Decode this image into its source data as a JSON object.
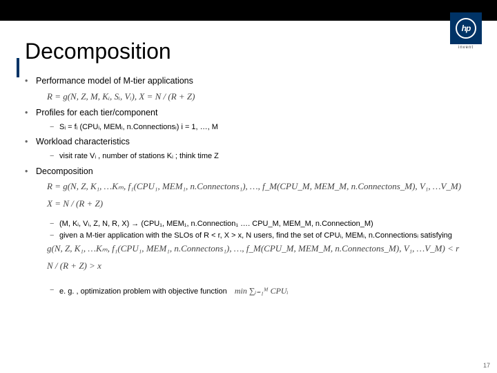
{
  "logo": {
    "text": "hp",
    "tagline": "invent"
  },
  "title": "Decomposition",
  "bullets": {
    "b1": {
      "text": "Performance model of M-tier applications",
      "formula": "R = g(N, Z, M, Kᵢ, Sᵢ, Vᵢ), X = N / (R + Z)"
    },
    "b2": {
      "text": "Profiles for each tier/component",
      "sub": "Sᵢ = fᵢ (CPUᵢ, MEMᵢ, n.Connectionsᵢ)  i = 1, …, M"
    },
    "b3": {
      "text": "Workload characteristics",
      "sub": "visit rate Vᵢ , number of stations Kᵢ ; think time Z"
    },
    "b4": {
      "text": "Decomposition",
      "formula1": "R = g(N, Z, K₁, …Kₘ, f₁(CPU₁, MEM₁, n.Connectons₁), …, f_M(CPU_M, MEM_M, n.Connectons_M), V₁, …V_M)",
      "formula2": "X = N / (R + Z)",
      "sub1": "(M, Kᵢ, Vᵢ, Z, N, R, X) → (CPU₁, MEM₁, n.Connection₁ …. CPU_M, MEM_M, n.Connection_M)",
      "sub2": "given a M-tier application with the SLOs of  R < r, X > x, N users, find the set of CPUᵢ, MEMᵢ, n.Connectionsᵢ satisfying",
      "formula3": "g(N, Z, K₁, …Kₘ, f₁(CPU₁, MEM₁, n.Connectons₁), …, f_M(CPU_M, MEM_M, n.Connectons_M), V₁, …V_M) < r",
      "formula4": "N / (R + Z) > x",
      "sub3": "e. g. , optimization problem with objective function",
      "formula5": "min ∑ᵢ₌₁ᴹ CPUᵢ"
    }
  },
  "pagenum": "17",
  "colors": {
    "accent": "#003366",
    "topbar": "#000000",
    "text": "#000000",
    "formula": "#444444"
  }
}
